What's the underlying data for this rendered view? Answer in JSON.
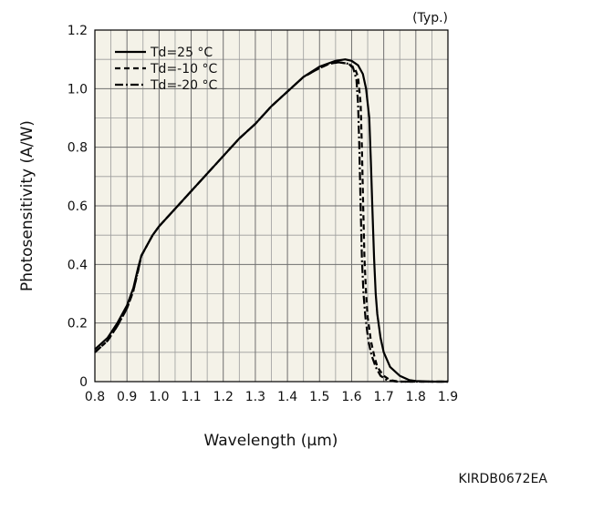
{
  "chart_data": {
    "type": "line",
    "title": "",
    "corner_note": "(Typ.)",
    "xlabel": "Wavelength (µm)",
    "ylabel": "Photosensitivity (A/W)",
    "xlim": [
      0.8,
      1.9
    ],
    "ylim": [
      0,
      1.2
    ],
    "xticks": [
      0.8,
      0.9,
      1.0,
      1.1,
      1.2,
      1.3,
      1.4,
      1.5,
      1.6,
      1.7,
      1.8,
      1.9
    ],
    "xtick_labels": [
      "0.8",
      "0.9",
      "1.0",
      "1.1",
      "1.2",
      "1.3",
      "1.4",
      "1.5",
      "1.6",
      "1.7",
      "1.8",
      "1.9"
    ],
    "yticks": [
      0,
      0.2,
      0.4,
      0.6,
      0.8,
      1.0,
      1.2
    ],
    "ytick_labels": [
      "0",
      "0.2",
      "0.4",
      "0.6",
      "0.8",
      "1.0",
      "1.2"
    ],
    "grid": true,
    "minor_grid": true,
    "legend_position": "top-left",
    "plot_background": "#f4f2e8",
    "series": [
      {
        "name": "Td=25 °C",
        "dash": "solid",
        "color": "#000000",
        "points": [
          [
            0.8,
            0.11
          ],
          [
            0.84,
            0.15
          ],
          [
            0.87,
            0.2
          ],
          [
            0.9,
            0.26
          ],
          [
            0.92,
            0.32
          ],
          [
            0.935,
            0.39
          ],
          [
            0.945,
            0.43
          ],
          [
            0.96,
            0.46
          ],
          [
            0.98,
            0.5
          ],
          [
            1.0,
            0.53
          ],
          [
            1.05,
            0.59
          ],
          [
            1.1,
            0.65
          ],
          [
            1.15,
            0.71
          ],
          [
            1.2,
            0.77
          ],
          [
            1.25,
            0.83
          ],
          [
            1.3,
            0.88
          ],
          [
            1.35,
            0.94
          ],
          [
            1.4,
            0.99
          ],
          [
            1.45,
            1.04
          ],
          [
            1.5,
            1.075
          ],
          [
            1.55,
            1.095
          ],
          [
            1.58,
            1.1
          ],
          [
            1.6,
            1.095
          ],
          [
            1.62,
            1.08
          ],
          [
            1.635,
            1.05
          ],
          [
            1.645,
            1.0
          ],
          [
            1.655,
            0.9
          ],
          [
            1.66,
            0.75
          ],
          [
            1.665,
            0.58
          ],
          [
            1.67,
            0.42
          ],
          [
            1.675,
            0.3
          ],
          [
            1.68,
            0.23
          ],
          [
            1.69,
            0.15
          ],
          [
            1.7,
            0.1
          ],
          [
            1.72,
            0.05
          ],
          [
            1.75,
            0.02
          ],
          [
            1.78,
            0.005
          ],
          [
            1.8,
            0.002
          ],
          [
            1.85,
            0.0
          ],
          [
            1.9,
            0.0
          ]
        ]
      },
      {
        "name": "Td=-10 °C",
        "dash": "dashed",
        "color": "#000000",
        "points": [
          [
            0.8,
            0.1
          ],
          [
            0.84,
            0.14
          ],
          [
            0.87,
            0.19
          ],
          [
            0.9,
            0.25
          ],
          [
            0.92,
            0.31
          ],
          [
            0.935,
            0.38
          ],
          [
            0.945,
            0.43
          ],
          [
            0.96,
            0.46
          ],
          [
            0.98,
            0.5
          ],
          [
            1.0,
            0.53
          ],
          [
            1.05,
            0.59
          ],
          [
            1.1,
            0.65
          ],
          [
            1.15,
            0.71
          ],
          [
            1.2,
            0.77
          ],
          [
            1.25,
            0.83
          ],
          [
            1.3,
            0.88
          ],
          [
            1.35,
            0.94
          ],
          [
            1.4,
            0.99
          ],
          [
            1.45,
            1.04
          ],
          [
            1.5,
            1.07
          ],
          [
            1.53,
            1.085
          ],
          [
            1.56,
            1.09
          ],
          [
            1.59,
            1.085
          ],
          [
            1.61,
            1.07
          ],
          [
            1.62,
            1.04
          ],
          [
            1.628,
            0.95
          ],
          [
            1.632,
            0.8
          ],
          [
            1.636,
            0.6
          ],
          [
            1.64,
            0.42
          ],
          [
            1.645,
            0.3
          ],
          [
            1.65,
            0.22
          ],
          [
            1.66,
            0.14
          ],
          [
            1.67,
            0.09
          ],
          [
            1.68,
            0.05
          ],
          [
            1.7,
            0.02
          ],
          [
            1.72,
            0.005
          ],
          [
            1.75,
            0.0
          ],
          [
            1.9,
            0.0
          ]
        ]
      },
      {
        "name": "Td=-20 °C",
        "dash": "dashdot",
        "color": "#000000",
        "points": [
          [
            0.8,
            0.1
          ],
          [
            0.84,
            0.14
          ],
          [
            0.87,
            0.19
          ],
          [
            0.9,
            0.25
          ],
          [
            0.92,
            0.31
          ],
          [
            0.935,
            0.38
          ],
          [
            0.945,
            0.43
          ],
          [
            0.96,
            0.46
          ],
          [
            0.98,
            0.5
          ],
          [
            1.0,
            0.53
          ],
          [
            1.05,
            0.59
          ],
          [
            1.1,
            0.65
          ],
          [
            1.15,
            0.71
          ],
          [
            1.2,
            0.77
          ],
          [
            1.25,
            0.83
          ],
          [
            1.3,
            0.88
          ],
          [
            1.35,
            0.94
          ],
          [
            1.4,
            0.99
          ],
          [
            1.45,
            1.04
          ],
          [
            1.5,
            1.07
          ],
          [
            1.53,
            1.085
          ],
          [
            1.56,
            1.09
          ],
          [
            1.59,
            1.085
          ],
          [
            1.605,
            1.07
          ],
          [
            1.615,
            1.03
          ],
          [
            1.62,
            0.95
          ],
          [
            1.624,
            0.8
          ],
          [
            1.628,
            0.6
          ],
          [
            1.632,
            0.42
          ],
          [
            1.637,
            0.3
          ],
          [
            1.643,
            0.22
          ],
          [
            1.652,
            0.14
          ],
          [
            1.662,
            0.09
          ],
          [
            1.675,
            0.05
          ],
          [
            1.69,
            0.02
          ],
          [
            1.71,
            0.005
          ],
          [
            1.74,
            0.0
          ],
          [
            1.9,
            0.0
          ]
        ]
      }
    ]
  },
  "footer": {
    "code": "KIRDB0672EA"
  }
}
